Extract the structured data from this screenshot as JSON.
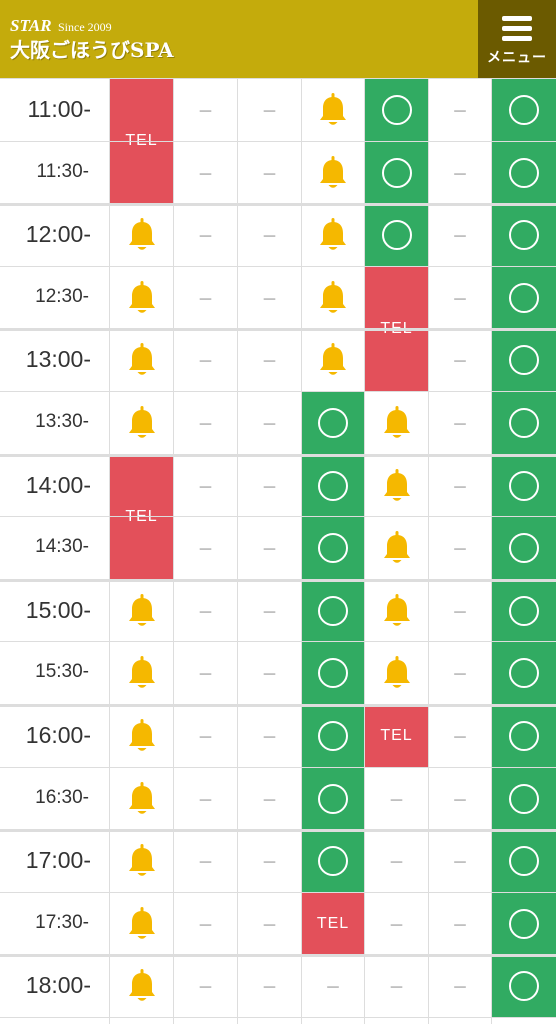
{
  "header": {
    "logo_star": "STAR",
    "logo_since": "Since 2009",
    "logo_name": "大阪ごほうびSPA",
    "menu_label": "メニュー"
  },
  "colors": {
    "header_bg": "#c4ab0c",
    "menu_bg": "#6b5a00",
    "open": "#31ab62",
    "tel": "#e3505a",
    "bell": "#f5b800"
  },
  "legend_symbols": {
    "open": "〇",
    "few": "bell-icon",
    "tel": "TEL",
    "none": "－"
  },
  "schedule": [
    {
      "time": "11:00-",
      "cols": [
        "tel",
        "-",
        "-",
        "bell",
        "open",
        "-",
        "open"
      ]
    },
    {
      "time": "11:30-",
      "cols": [
        "tel",
        "-",
        "-",
        "bell",
        "open",
        "-",
        "open"
      ]
    },
    {
      "time": "12:00-",
      "cols": [
        "bell",
        "-",
        "-",
        "bell",
        "open",
        "-",
        "open"
      ]
    },
    {
      "time": "12:30-",
      "cols": [
        "bell",
        "-",
        "-",
        "bell",
        "tel",
        "-",
        "open"
      ]
    },
    {
      "time": "13:00-",
      "cols": [
        "bell",
        "-",
        "-",
        "bell",
        "tel",
        "-",
        "open"
      ]
    },
    {
      "time": "13:30-",
      "cols": [
        "bell",
        "-",
        "-",
        "open",
        "bell",
        "-",
        "open"
      ]
    },
    {
      "time": "14:00-",
      "cols": [
        "tel",
        "-",
        "-",
        "open",
        "bell",
        "-",
        "open"
      ]
    },
    {
      "time": "14:30-",
      "cols": [
        "tel",
        "-",
        "-",
        "open",
        "bell",
        "-",
        "open"
      ]
    },
    {
      "time": "15:00-",
      "cols": [
        "bell",
        "-",
        "-",
        "open",
        "bell",
        "-",
        "open"
      ]
    },
    {
      "time": "15:30-",
      "cols": [
        "bell",
        "-",
        "-",
        "open",
        "bell",
        "-",
        "open"
      ]
    },
    {
      "time": "16:00-",
      "cols": [
        "bell",
        "-",
        "-",
        "open",
        "tel",
        "-",
        "open"
      ]
    },
    {
      "time": "16:30-",
      "cols": [
        "bell",
        "-",
        "-",
        "open",
        "-",
        "-",
        "open"
      ]
    },
    {
      "time": "17:00-",
      "cols": [
        "bell",
        "-",
        "-",
        "open",
        "-",
        "-",
        "open"
      ]
    },
    {
      "time": "17:30-",
      "cols": [
        "bell",
        "-",
        "-",
        "tel",
        "-",
        "-",
        "open"
      ]
    },
    {
      "time": "18:00-",
      "cols": [
        "bell",
        "-",
        "-",
        "-",
        "-",
        "-",
        "open"
      ]
    }
  ]
}
